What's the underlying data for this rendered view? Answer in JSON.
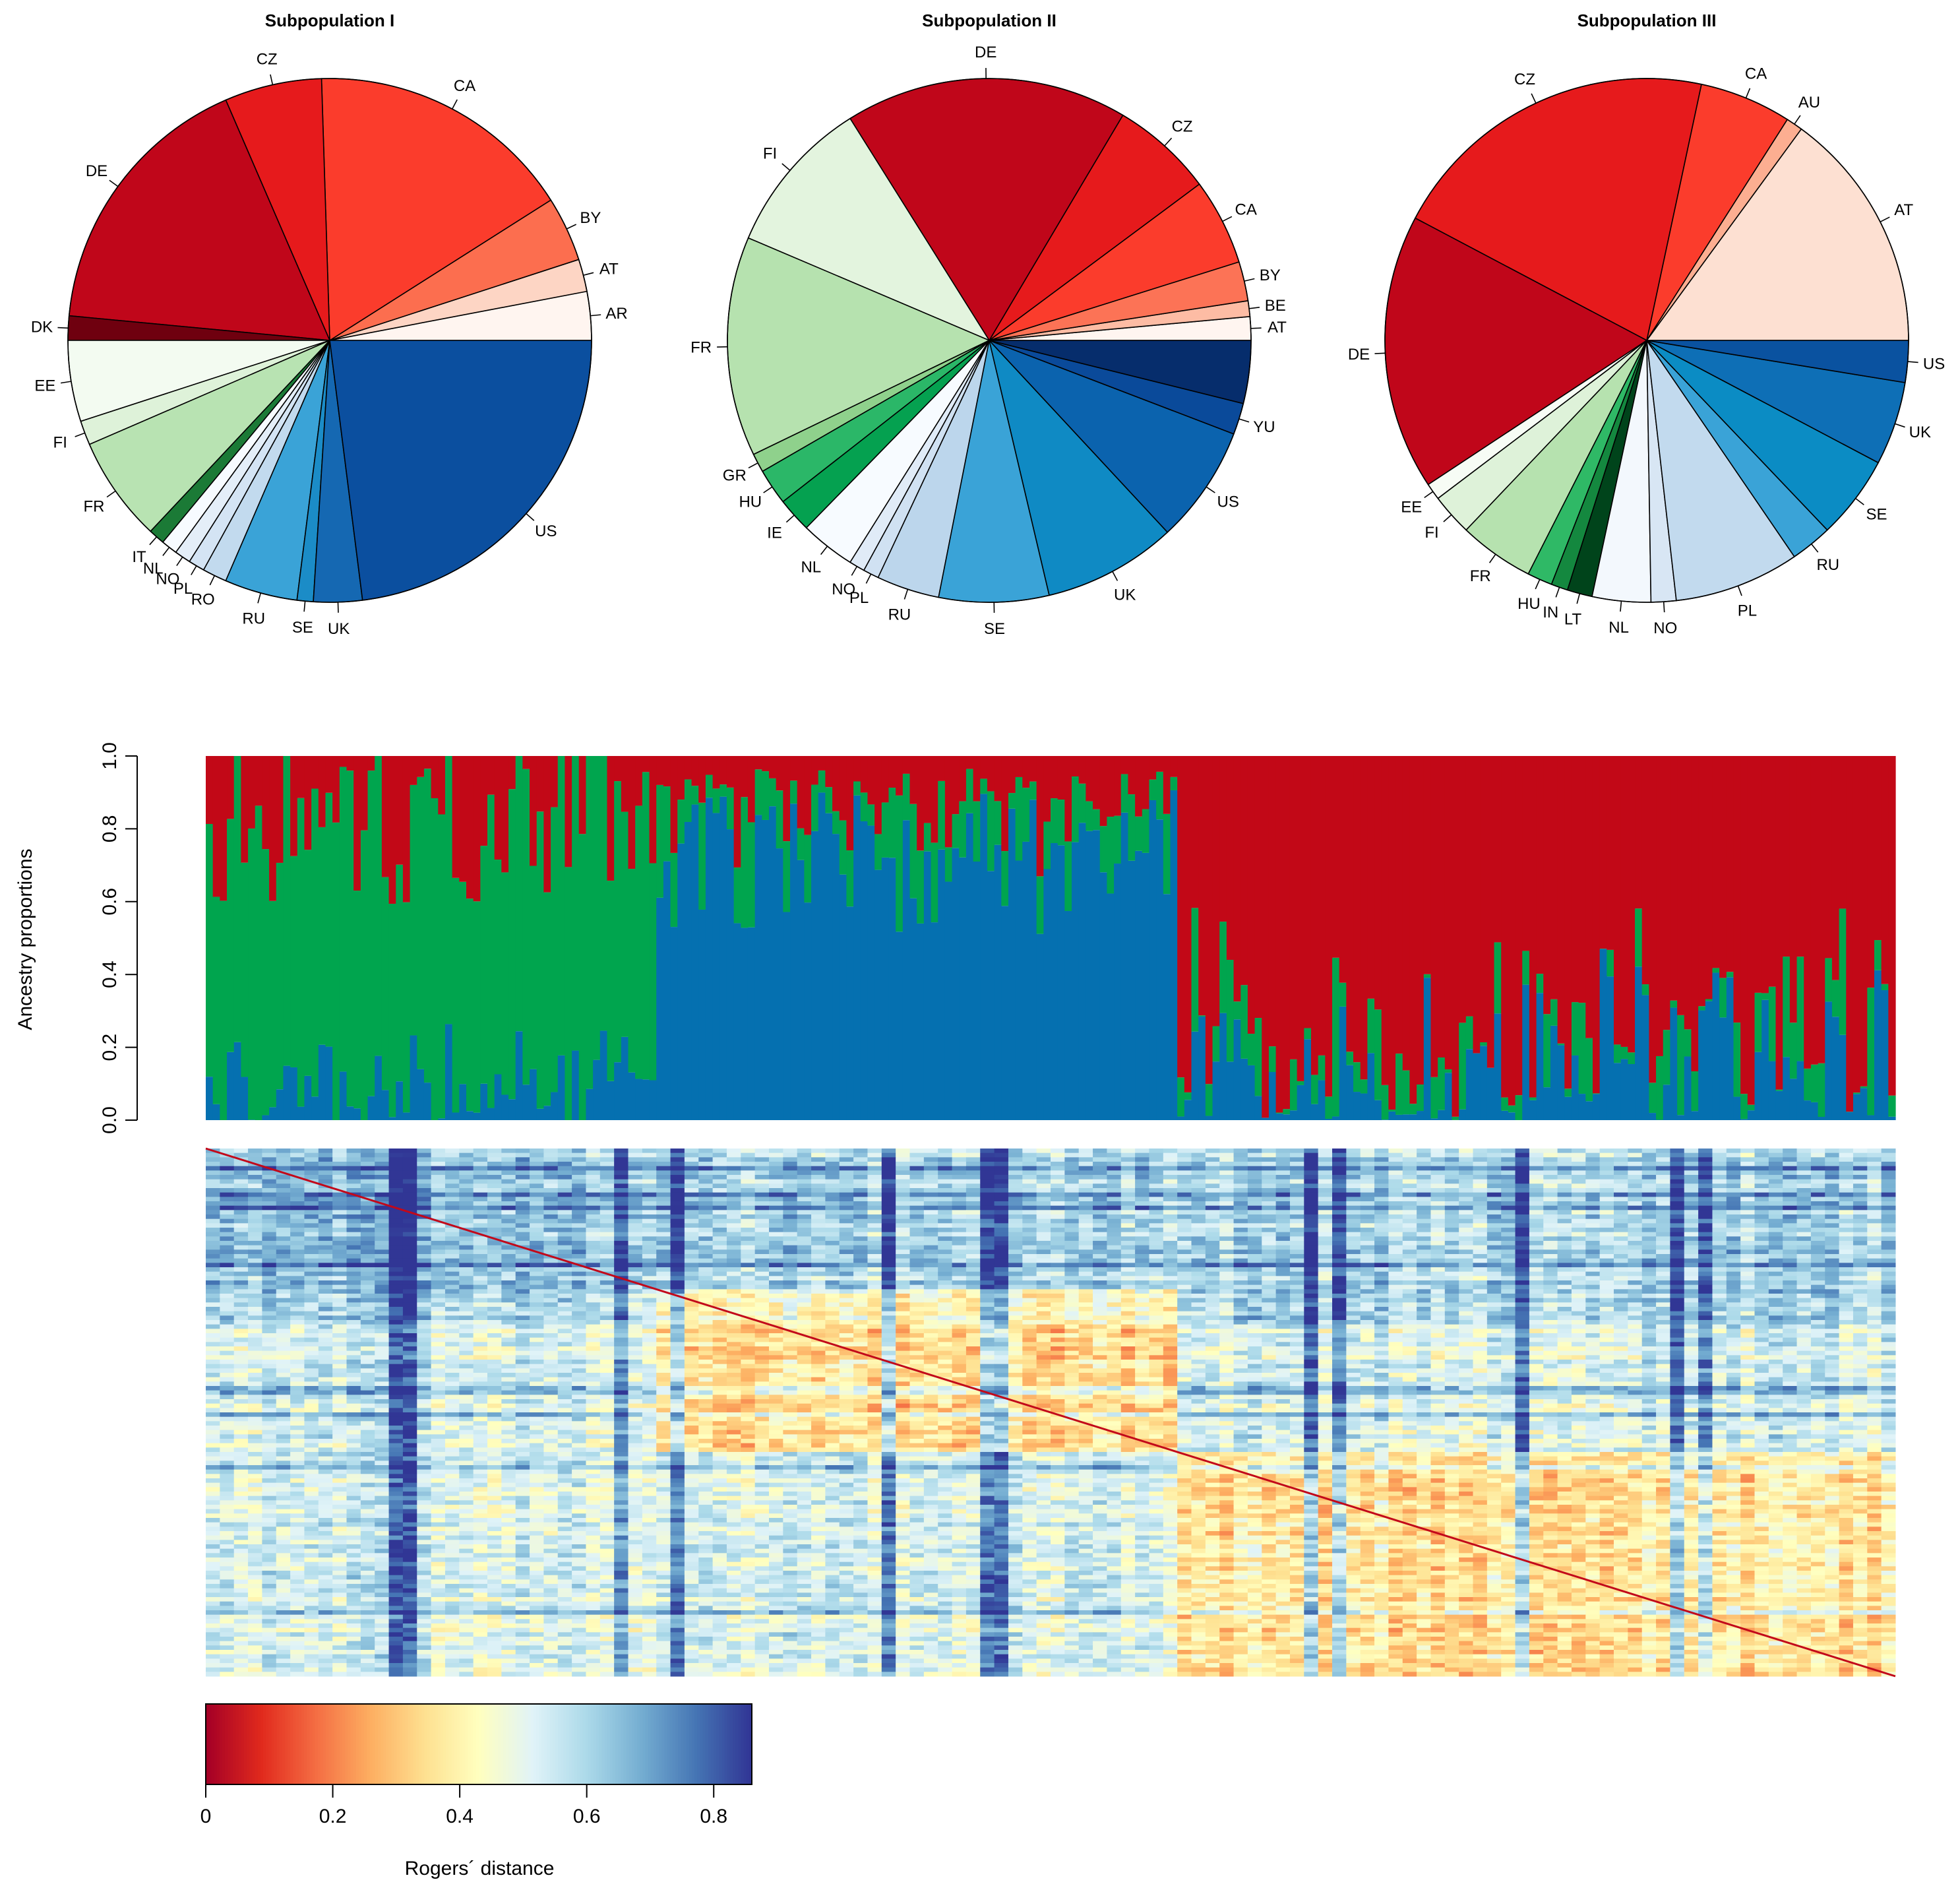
{
  "chart_data": [
    {
      "type": "pie",
      "title": "Subpopulation I",
      "start": "right, counter-clockwise",
      "slices": [
        {
          "label": "AR",
          "value": 3.0,
          "color": "#fff5f0"
        },
        {
          "label": "AT",
          "value": 2.0,
          "color": "#fdd5c4"
        },
        {
          "label": "BY",
          "value": 4.0,
          "color": "#fc6e4f"
        },
        {
          "label": "CA",
          "value": 16.5,
          "color": "#fb3c2c"
        },
        {
          "label": "CZ",
          "value": 6.0,
          "color": "#e61a1c"
        },
        {
          "label": "DE",
          "value": 17.0,
          "color": "#c0061a"
        },
        {
          "label": "DK",
          "value": 1.5,
          "color": "#6f000f"
        },
        {
          "label": "EE",
          "value": 5.0,
          "color": "#f3fbf1"
        },
        {
          "label": "FI",
          "value": 1.5,
          "color": "#def2d9"
        },
        {
          "label": "FR",
          "value": 6.5,
          "color": "#b8e3b2"
        },
        {
          "label": "IT",
          "value": 1.0,
          "color": "#1b7a36"
        },
        {
          "label": "NL",
          "value": 1.0,
          "color": "#f7fbff"
        },
        {
          "label": "NO",
          "value": 1.0,
          "color": "#e4eef8"
        },
        {
          "label": "PL",
          "value": 1.0,
          "color": "#d4e4f4"
        },
        {
          "label": "RO",
          "value": 1.5,
          "color": "#c2daee"
        },
        {
          "label": "RU",
          "value": 4.5,
          "color": "#3aa3d7"
        },
        {
          "label": "SE",
          "value": 1.0,
          "color": "#1b8cc7"
        },
        {
          "label": "UK",
          "value": 3.0,
          "color": "#1568b2"
        },
        {
          "label": "US",
          "value": 23.0,
          "color": "#0b4f9f"
        }
      ]
    },
    {
      "type": "pie",
      "title": "Subpopulation II",
      "start": "right, counter-clockwise",
      "slices": [
        {
          "label": "AT",
          "value": 1.5,
          "color": "#fff5f0"
        },
        {
          "label": "BE",
          "value": 1.0,
          "color": "#fdbca4"
        },
        {
          "label": "BY",
          "value": 2.5,
          "color": "#fc7356"
        },
        {
          "label": "CA",
          "value": 5.5,
          "color": "#fb3c2c"
        },
        {
          "label": "CZ",
          "value": 6.5,
          "color": "#e61a1c"
        },
        {
          "label": "DE",
          "value": 18.0,
          "color": "#c0061a"
        },
        {
          "label": "FI",
          "value": 10.0,
          "color": "#e3f4de"
        },
        {
          "label": "FR",
          "value": 14.0,
          "color": "#b6e2af"
        },
        {
          "label": "GR",
          "value": 1.2,
          "color": "#8fd18c"
        },
        {
          "label": "HU",
          "value": 2.3,
          "color": "#2bb768"
        },
        {
          "label": "IE",
          "value": 2.2,
          "color": "#05a150"
        },
        {
          "label": "NL",
          "value": 3.5,
          "color": "#f7fbff"
        },
        {
          "label": "NO",
          "value": 1.0,
          "color": "#e0ebf7"
        },
        {
          "label": "PL",
          "value": 1.0,
          "color": "#d0e1f2"
        },
        {
          "label": "RU",
          "value": 4.0,
          "color": "#bcd6ec"
        },
        {
          "label": "SE",
          "value": 7.0,
          "color": "#3aa3d7"
        },
        {
          "label": "UK",
          "value": 8.5,
          "color": "#0f8ac4"
        },
        {
          "label": "US",
          "value": 7.5,
          "color": "#0b63ae"
        },
        {
          "label": "YU",
          "value": 2.0,
          "color": "#0a4a9a"
        },
        {
          "label": "",
          "value": 4.0,
          "color": "#062d6c"
        }
      ]
    },
    {
      "type": "pie",
      "title": "Subpopulation III",
      "start": "right, counter-clockwise",
      "slices": [
        {
          "label": "AT",
          "value": 14.5,
          "color": "#fde0d2"
        },
        {
          "label": "AU",
          "value": 1.0,
          "color": "#fcae91"
        },
        {
          "label": "CA",
          "value": 5.5,
          "color": "#fb3c2c"
        },
        {
          "label": "CZ",
          "value": 20.0,
          "color": "#e61a1c"
        },
        {
          "label": "DE",
          "value": 16.5,
          "color": "#c0061a"
        },
        {
          "label": "EE",
          "value": 1.0,
          "color": "#f7fcf5"
        },
        {
          "label": "FI",
          "value": 2.5,
          "color": "#def2d9"
        },
        {
          "label": "FR",
          "value": 4.5,
          "color": "#b6e2af"
        },
        {
          "label": "HU",
          "value": 1.5,
          "color": "#2fb966"
        },
        {
          "label": "IN",
          "value": 1.0,
          "color": "#14883f"
        },
        {
          "label": "LT",
          "value": 1.5,
          "color": "#00441b"
        },
        {
          "label": "NL",
          "value": 3.5,
          "color": "#f3f8fd"
        },
        {
          "label": "NO",
          "value": 1.5,
          "color": "#d8e6f4"
        },
        {
          "label": "PL",
          "value": 7.5,
          "color": "#c2daee"
        },
        {
          "label": "RU",
          "value": 2.5,
          "color": "#3aa3d7"
        },
        {
          "label": "SE",
          "value": 5.0,
          "color": "#0b8cc4"
        },
        {
          "label": "UK",
          "value": 5.0,
          "color": "#0e6fb6"
        },
        {
          "label": "US",
          "value": 2.5,
          "color": "#0a52a0"
        }
      ]
    },
    {
      "type": "bar",
      "subtype": "stacked",
      "title": "",
      "ylabel": "Ancestry proportions",
      "ylim": [
        0,
        1
      ],
      "yticks": [
        "0.0",
        "0.2",
        "0.4",
        "0.6",
        "0.8",
        "1.0"
      ],
      "n_individuals": 240,
      "series": [
        {
          "name": "blue",
          "color": "#0570b0"
        },
        {
          "name": "green",
          "color": "#00a54e"
        },
        {
          "name": "red",
          "color": "#c20817"
        }
      ],
      "groups": [
        {
          "name": "Subpopulation I",
          "count": 64,
          "blue_mean": 0.12,
          "green_mean": 0.74
        },
        {
          "name": "Subpopulation II",
          "count": 74,
          "blue_mean": 0.7,
          "green_mean": 0.12
        },
        {
          "name": "Subpopulation III",
          "count": 102,
          "blue_mean": 0.09,
          "green_mean": 0.06
        }
      ]
    },
    {
      "type": "heatmap",
      "title": "",
      "n": 240,
      "diagonal_color": "#c2081a",
      "blocks": [
        {
          "from": 0,
          "to": 64
        },
        {
          "from": 64,
          "to": 138
        },
        {
          "from": 138,
          "to": 240
        }
      ],
      "colorbar": {
        "label": "Rogers´ distance",
        "range": [
          0,
          0.86
        ],
        "ticks": [
          "0",
          "0.2",
          "0.4",
          "0.6",
          "0.8"
        ],
        "colors": [
          "#a50026",
          "#e12a1d",
          "#f46d43",
          "#fdae61",
          "#fee090",
          "#ffffbf",
          "#e0f3f8",
          "#abd9e9",
          "#74add1",
          "#4575b4",
          "#313695"
        ]
      }
    }
  ]
}
